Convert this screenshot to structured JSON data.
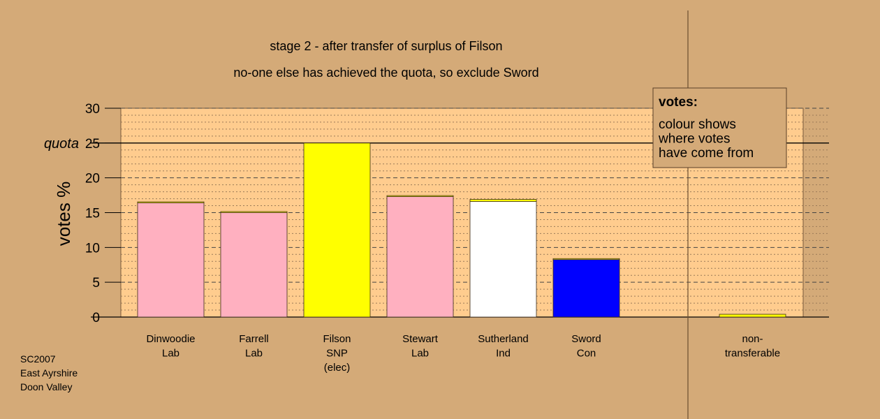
{
  "chart_data": {
    "type": "bar",
    "stacked": true,
    "title": "stage 2 - after transfer of surplus of Filson",
    "subtitle": "no-one else has achieved the quota, so exclude Sword",
    "ylabel": "votes %",
    "ylim": [
      0,
      30
    ],
    "yticks": [
      0,
      5,
      10,
      15,
      20,
      25,
      30
    ],
    "quota": 25,
    "quota_label": "quota",
    "grid": true,
    "categories": [
      [
        "Dinwoodie",
        "Lab"
      ],
      [
        "Farrell",
        "Lab"
      ],
      [
        "Filson",
        "SNP",
        "(elec)"
      ],
      [
        "Stewart",
        "Lab"
      ],
      [
        "Sutherland",
        "Ind"
      ],
      [
        "Sword",
        "Con"
      ],
      [
        "non-",
        "transferable"
      ]
    ],
    "series": [
      {
        "color": "#ffb0c0",
        "values": [
          16.45,
          15.05,
          0,
          17.3,
          0,
          0,
          0
        ]
      },
      {
        "color": "#ffff00",
        "values": [
          0,
          0,
          25,
          0,
          0,
          0,
          0.4
        ]
      },
      {
        "color": "#ffffff",
        "values": [
          0,
          0,
          0,
          0,
          16.6,
          0,
          0
        ]
      },
      {
        "color": "#0000ff",
        "values": [
          0,
          0,
          0,
          0,
          0,
          8.3,
          0
        ]
      },
      {
        "color": "#ffff00",
        "values": [
          0.1,
          0.1,
          0,
          0.15,
          0.3,
          0.1,
          0
        ]
      }
    ],
    "legend": {
      "title": "votes:",
      "lines": [
        "colour shows",
        "where votes",
        "have come from"
      ],
      "placement": "top-right"
    }
  },
  "footer": [
    "SC2007",
    "East Ayrshire",
    "Doon Valley"
  ],
  "colors": {
    "background": "#d4aa78",
    "plot": "#ffcc8e"
  }
}
